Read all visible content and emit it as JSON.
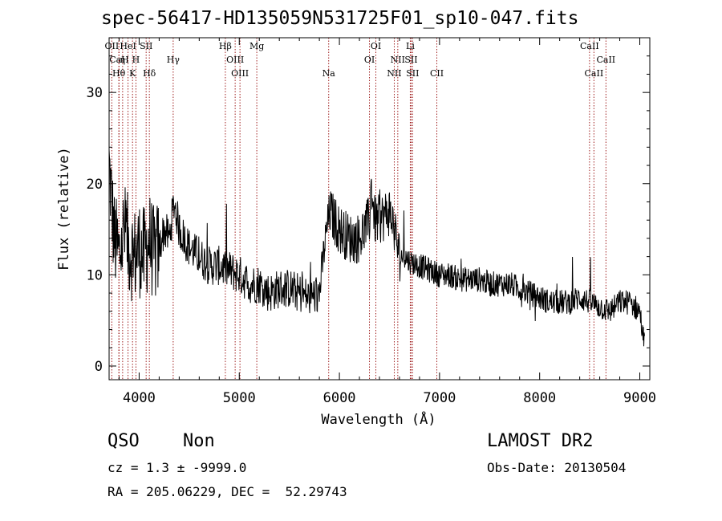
{
  "title": "spec-56417-HD135059N531725F01_sp10-047.fits",
  "info": {
    "class": "QSO",
    "subclass": "Non",
    "survey": "LAMOST DR2",
    "cz": "cz = 1.3 ± -9999.0",
    "obs_date": "Obs-Date: 20130504",
    "radec": "RA = 205.06229, DEC =  52.29743"
  },
  "chart_data": {
    "type": "line",
    "xlabel": "Wavelength (Å)",
    "ylabel": "Flux (relative)",
    "xlim": [
      3700,
      9100
    ],
    "ylim": [
      -1.5,
      36
    ],
    "xticks": [
      4000,
      5000,
      6000,
      7000,
      8000,
      9000
    ],
    "yticks": [
      0,
      10,
      20,
      30
    ],
    "grid": false,
    "legend": "none",
    "series": [
      {
        "x": [
          3700,
          3750,
          3800,
          3850,
          3900,
          3950,
          4000,
          4050,
          4100,
          4150,
          4200,
          4250,
          4300,
          4350,
          4400,
          4450,
          4500,
          4600,
          4700,
          4800,
          4900,
          5000,
          5100,
          5200,
          5300,
          5400,
          5500,
          5600,
          5700,
          5800,
          5850,
          5900,
          5950,
          6000,
          6100,
          6200,
          6300,
          6320,
          6350,
          6400,
          6500,
          6550,
          6600,
          6650,
          6700,
          6800,
          6900,
          7000,
          7100,
          7200,
          7300,
          7400,
          7500,
          7600,
          7700,
          7800,
          7900,
          8000,
          8100,
          8200,
          8300,
          8400,
          8500,
          8600,
          8700,
          8800,
          8900,
          9000,
          9050
        ],
        "values": [
          22,
          14,
          12,
          15,
          13,
          12,
          13,
          12,
          14,
          12,
          13,
          15,
          14,
          18,
          15,
          14,
          13,
          12,
          11,
          11,
          10.5,
          10,
          9,
          9,
          8,
          8.5,
          8.5,
          8,
          7.5,
          8,
          13,
          17,
          16,
          15,
          14,
          14,
          16,
          20,
          16,
          16,
          17,
          15,
          12,
          12,
          11.5,
          11,
          10.5,
          10,
          10,
          9.5,
          9.5,
          9.5,
          9,
          9,
          9,
          8.5,
          8,
          7.5,
          7,
          7,
          7,
          7.5,
          7,
          6.5,
          6,
          7,
          7,
          6,
          2
        ]
      }
    ],
    "lines": [
      {
        "label": "OII",
        "w": 3727,
        "row": 0
      },
      {
        "label": "HeI",
        "w": 3889,
        "row": 0
      },
      {
        "label": "SII",
        "w": 4070,
        "row": 0
      },
      {
        "label": "CaH",
        "w": 3800,
        "row": 1
      },
      {
        "label": "η",
        "w": 3835,
        "row": 1
      },
      {
        "label": "H",
        "w": 3968,
        "row": 1
      },
      {
        "label": "Hθ",
        "w": 3797,
        "row": 2
      },
      {
        "label": "K",
        "w": 3934,
        "row": 2
      },
      {
        "label": "Hδ",
        "w": 4102,
        "row": 2
      },
      {
        "label": "Hγ",
        "w": 4340,
        "row": 1
      },
      {
        "label": "Hβ",
        "w": 4861,
        "row": 0
      },
      {
        "label": "OIII",
        "w": 4959,
        "row": 1
      },
      {
        "label": "OIII",
        "w": 5007,
        "row": 2
      },
      {
        "label": "Mg",
        "w": 5175,
        "row": 0
      },
      {
        "label": "Na",
        "w": 5893,
        "row": 2
      },
      {
        "label": "OI",
        "w": 6300,
        "row": 1
      },
      {
        "label": "OI",
        "w": 6364,
        "row": 0
      },
      {
        "label": "NII",
        "w": 6548,
        "row": 2
      },
      {
        "label": "NII",
        "w": 6583,
        "row": 1
      },
      {
        "label": "Li",
        "w": 6708,
        "row": 0
      },
      {
        "label": "SII",
        "w": 6716,
        "row": 1
      },
      {
        "label": "SII",
        "w": 6731,
        "row": 2
      },
      {
        "label": "CII",
        "w": 6973,
        "row": 2
      },
      {
        "label": "CaII",
        "w": 8498,
        "row": 0
      },
      {
        "label": "CaII",
        "w": 8542,
        "row": 2
      },
      {
        "label": "CaII",
        "w": 8662,
        "row": 1
      }
    ]
  }
}
